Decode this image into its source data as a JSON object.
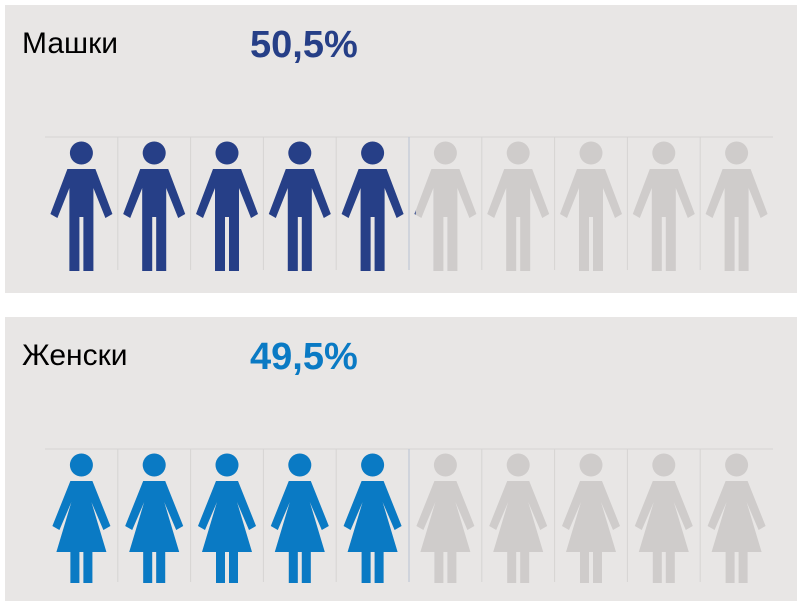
{
  "chart_data": [
    {
      "type": "pictogram",
      "icon": "man",
      "categories": [
        "Машки"
      ],
      "values": [
        50.5
      ],
      "value_labels": [
        "50,5%"
      ],
      "color": "#263f87",
      "xlim": [
        0,
        100
      ]
    },
    {
      "type": "pictogram",
      "icon": "woman",
      "categories": [
        "Женски"
      ],
      "values": [
        49.5
      ],
      "value_labels": [
        "49,5%"
      ],
      "color": "#0a7ac4",
      "xlim": [
        0,
        100
      ]
    }
  ]
}
